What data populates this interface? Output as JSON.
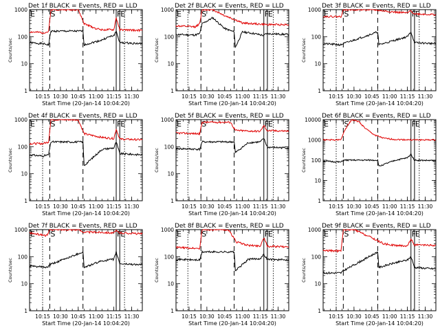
{
  "page": {
    "background": "#ffffff"
  },
  "chart_data": [
    {
      "type": "line",
      "title": "Det 1f BLACK = Events, RED = LLD",
      "xlabel": "Start Time (20-Jan-14 10:04:20)",
      "ylabel": "Counts/sec",
      "yscale": "log",
      "ylim": [
        1,
        1000
      ],
      "xlim": [
        "10:04",
        "11:39"
      ],
      "x_ticks": [
        "10:15",
        "10:30",
        "10:45",
        "11:00",
        "11:15",
        "11:30"
      ],
      "y_ticks": [
        "1",
        "10",
        "100",
        "1000"
      ],
      "markers": [
        {
          "label": "E",
          "time": "10:04"
        },
        {
          "label": "S",
          "time": "10:21"
        },
        {
          "label": "F",
          "time": "11:17"
        },
        {
          "label": "E",
          "time": "11:20"
        }
      ],
      "dashed_lines": [
        "10:21",
        "10:49"
      ],
      "solid_lines": [
        "11:17",
        "11:20"
      ],
      "dotted_lines": [
        "10:15",
        "11:24"
      ],
      "series": [
        {
          "color": "#000000",
          "x": [
            "10:04",
            "10:15",
            "10:20",
            "10:22",
            "10:49",
            "10:50",
            "11:05",
            "11:10",
            "11:15",
            "11:17",
            "11:20",
            "11:39"
          ],
          "values": [
            60,
            55,
            50,
            160,
            160,
            50,
            75,
            95,
            110,
            160,
            60,
            55
          ]
        },
        {
          "color": "#e00000",
          "x": [
            "10:04",
            "10:15",
            "10:20",
            "10:22",
            "10:30",
            "10:45",
            "10:50",
            "11:00",
            "11:05",
            "11:15",
            "11:17",
            "11:20",
            "11:39"
          ],
          "values": [
            150,
            140,
            150,
            1000,
            1000,
            1000,
            300,
            200,
            180,
            180,
            500,
            180,
            170
          ]
        }
      ]
    },
    {
      "type": "line",
      "title": "Det 2f BLACK = Events, RED = LLD",
      "xlabel": "Start Time (20-Jan-14 10:04:20)",
      "ylabel": "Counts/sec",
      "yscale": "log",
      "ylim": [
        1,
        1000
      ],
      "xlim": [
        "10:04",
        "11:39"
      ],
      "x_ticks": [
        "10:15",
        "10:30",
        "10:45",
        "11:00",
        "11:15",
        "11:30"
      ],
      "y_ticks": [
        "1",
        "10",
        "100",
        "1000"
      ],
      "markers": [
        {
          "label": "E",
          "time": "10:04"
        },
        {
          "label": "S",
          "time": "10:25"
        },
        {
          "label": "F",
          "time": "11:18"
        },
        {
          "label": "E",
          "time": "11:21"
        }
      ],
      "dashed_lines": [
        "10:25",
        "10:53"
      ],
      "solid_lines": [
        "11:18",
        "11:21"
      ],
      "dotted_lines": [
        "10:14",
        "11:26"
      ],
      "series": [
        {
          "color": "#000000",
          "x": [
            "10:04",
            "10:20",
            "10:24",
            "10:26",
            "10:35",
            "10:45",
            "10:53",
            "10:54",
            "11:00",
            "11:10",
            "11:18",
            "11:20",
            "11:39"
          ],
          "values": [
            120,
            115,
            130,
            300,
            500,
            200,
            150,
            40,
            150,
            130,
            110,
            130,
            120
          ]
        },
        {
          "color": "#e00000",
          "x": [
            "10:04",
            "10:20",
            "10:24",
            "10:26",
            "10:30",
            "10:35",
            "10:45",
            "10:55",
            "11:00",
            "11:10",
            "11:20",
            "11:39"
          ],
          "values": [
            250,
            230,
            300,
            1000,
            1000,
            1000,
            600,
            400,
            320,
            300,
            280,
            280
          ]
        }
      ]
    },
    {
      "type": "line",
      "title": "Det 3f BLACK = Events, RED = LLD",
      "xlabel": "Start Time (20-Jan-14 10:04:20)",
      "ylabel": "Counts/sec",
      "yscale": "log",
      "ylim": [
        1,
        1000
      ],
      "xlim": [
        "10:04",
        "11:39"
      ],
      "x_ticks": [
        "10:15",
        "10:30",
        "10:45",
        "11:00",
        "11:15",
        "11:30"
      ],
      "y_ticks": [
        "1",
        "10",
        "100",
        "1000"
      ],
      "markers": [
        {
          "label": "E",
          "time": "10:04"
        },
        {
          "label": "S",
          "time": "10:21"
        },
        {
          "label": "F",
          "time": "11:18"
        },
        {
          "label": "E",
          "time": "11:21"
        }
      ],
      "dashed_lines": [
        "10:21",
        "10:50"
      ],
      "solid_lines": [
        "11:18",
        "11:21"
      ],
      "dotted_lines": [
        "10:15",
        "11:25"
      ],
      "series": [
        {
          "color": "#000000",
          "x": [
            "10:04",
            "10:19",
            "10:21",
            "10:50",
            "10:51",
            "11:05",
            "11:15",
            "11:18",
            "11:21",
            "11:39"
          ],
          "values": [
            55,
            50,
            55,
            150,
            50,
            75,
            100,
            150,
            60,
            55
          ]
        },
        {
          "color": "#e00000",
          "x": [
            "10:04",
            "10:19",
            "10:21",
            "10:45",
            "10:50",
            "11:05",
            "11:15",
            "11:18",
            "11:21",
            "11:39"
          ],
          "values": [
            560,
            550,
            1000,
            1000,
            950,
            800,
            750,
            900,
            700,
            650
          ]
        }
      ]
    },
    {
      "type": "line",
      "title": "Det 4f BLACK = Events, RED = LLD",
      "xlabel": "Start Time (20-Jan-14 10:04:20)",
      "ylabel": "Counts/sec",
      "yscale": "log",
      "ylim": [
        1,
        1000
      ],
      "xlim": [
        "10:04",
        "11:39"
      ],
      "x_ticks": [
        "10:15",
        "10:30",
        "10:45",
        "11:00",
        "11:15",
        "11:30"
      ],
      "y_ticks": [
        "1",
        "10",
        "100",
        "1000"
      ],
      "markers": [
        {
          "label": "E",
          "time": "10:04"
        },
        {
          "label": "S",
          "time": "10:21"
        },
        {
          "label": "F",
          "time": "11:17"
        },
        {
          "label": "E",
          "time": "11:20"
        }
      ],
      "dashed_lines": [
        "10:21",
        "10:49"
      ],
      "solid_lines": [
        "11:17",
        "11:20"
      ],
      "dotted_lines": [
        "10:15",
        "11:24"
      ],
      "series": [
        {
          "color": "#000000",
          "x": [
            "10:04",
            "10:15",
            "10:20",
            "10:22",
            "10:49",
            "10:50",
            "11:05",
            "11:15",
            "11:17",
            "11:20",
            "11:39"
          ],
          "values": [
            50,
            45,
            50,
            150,
            150,
            20,
            80,
            90,
            150,
            55,
            50
          ]
        },
        {
          "color": "#e00000",
          "x": [
            "10:04",
            "10:15",
            "10:20",
            "10:22",
            "10:45",
            "10:50",
            "11:05",
            "11:15",
            "11:17",
            "11:20",
            "11:39"
          ],
          "values": [
            130,
            130,
            150,
            1000,
            1000,
            300,
            220,
            200,
            450,
            190,
            180
          ]
        }
      ]
    },
    {
      "type": "line",
      "title": "Det 5f BLACK = Events, RED = LLD",
      "xlabel": "Start Time (20-Jan-14 10:04:20)",
      "ylabel": "Counts/sec",
      "yscale": "log",
      "ylim": [
        1,
        1000
      ],
      "xlim": [
        "10:04",
        "11:39"
      ],
      "x_ticks": [
        "10:15",
        "10:30",
        "10:45",
        "11:00",
        "11:15",
        "11:30"
      ],
      "y_ticks": [
        "1",
        "10",
        "100",
        "1000"
      ],
      "markers": [
        {
          "label": "E",
          "time": "10:04"
        },
        {
          "label": "S",
          "time": "10:25"
        },
        {
          "label": "F",
          "time": "11:18"
        },
        {
          "label": "E",
          "time": "11:21"
        }
      ],
      "dashed_lines": [
        "10:25",
        "10:53"
      ],
      "solid_lines": [
        "11:18",
        "11:21"
      ],
      "dotted_lines": [
        "10:14",
        "11:26"
      ],
      "series": [
        {
          "color": "#000000",
          "x": [
            "10:04",
            "10:24",
            "10:26",
            "10:53",
            "10:54",
            "11:05",
            "11:15",
            "11:18",
            "11:21",
            "11:39"
          ],
          "values": [
            85,
            80,
            150,
            150,
            60,
            140,
            150,
            200,
            95,
            90
          ]
        },
        {
          "color": "#e00000",
          "x": [
            "10:04",
            "10:24",
            "10:26",
            "10:50",
            "10:54",
            "11:05",
            "11:15",
            "11:18",
            "11:21",
            "11:39"
          ],
          "values": [
            320,
            300,
            800,
            800,
            400,
            380,
            370,
            600,
            390,
            380
          ]
        }
      ]
    },
    {
      "type": "line",
      "title": "Det 6f BLACK = Events, RED = LLD",
      "xlabel": "Start Time (20-Jan-14 10:04:20)",
      "ylabel": "Counts/sec",
      "yscale": "log",
      "ylim": [
        1,
        10000
      ],
      "xlim": [
        "10:04",
        "11:39"
      ],
      "x_ticks": [
        "10:15",
        "10:30",
        "10:45",
        "11:00",
        "11:15",
        "11:30"
      ],
      "y_ticks": [
        "1",
        "10",
        "100",
        "1000",
        "10000"
      ],
      "markers": [
        {
          "label": "E",
          "time": "10:04"
        },
        {
          "label": "S",
          "time": "10:21"
        },
        {
          "label": "F",
          "time": "11:18"
        },
        {
          "label": "E",
          "time": "11:21"
        }
      ],
      "dashed_lines": [
        "10:21",
        "10:50"
      ],
      "solid_lines": [
        "11:18",
        "11:21"
      ],
      "dotted_lines": [
        "10:15",
        "11:25"
      ],
      "series": [
        {
          "color": "#000000",
          "x": [
            "10:04",
            "10:19",
            "10:21",
            "10:50",
            "10:51",
            "11:05",
            "11:15",
            "11:18",
            "11:21",
            "11:39"
          ],
          "values": [
            90,
            80,
            100,
            100,
            50,
            100,
            130,
            200,
            100,
            95
          ]
        },
        {
          "color": "#e00000",
          "x": [
            "10:04",
            "10:19",
            "10:22",
            "10:28",
            "10:34",
            "10:40",
            "10:47",
            "10:55",
            "11:05",
            "11:20",
            "11:39"
          ],
          "values": [
            1000,
            1000,
            3000,
            10000,
            8000,
            3500,
            1800,
            1200,
            1050,
            1000,
            1000
          ]
        }
      ]
    },
    {
      "type": "line",
      "title": "Det 7f BLACK = Events, RED = LLD",
      "xlabel": "Start Time (20-Jan-14 10:04:20)",
      "ylabel": "Counts/sec",
      "yscale": "log",
      "ylim": [
        1,
        1000
      ],
      "xlim": [
        "10:04",
        "11:39"
      ],
      "x_ticks": [
        "10:15",
        "10:30",
        "10:45",
        "11:00",
        "11:15",
        "11:30"
      ],
      "y_ticks": [
        "1",
        "10",
        "100",
        "1000"
      ],
      "markers": [
        {
          "label": "E",
          "time": "10:04"
        },
        {
          "label": "S",
          "time": "10:21"
        },
        {
          "label": "F",
          "time": "11:17"
        },
        {
          "label": "E",
          "time": "11:20"
        }
      ],
      "dashed_lines": [
        "10:21",
        "10:49"
      ],
      "solid_lines": [
        "11:17",
        "11:20"
      ],
      "dotted_lines": [
        "10:15",
        "11:24"
      ],
      "series": [
        {
          "color": "#000000",
          "x": [
            "10:04",
            "10:19",
            "10:21",
            "10:49",
            "10:50",
            "11:05",
            "11:15",
            "11:17",
            "11:20",
            "11:39"
          ],
          "values": [
            45,
            40,
            50,
            150,
            40,
            70,
            80,
            150,
            55,
            50
          ]
        },
        {
          "color": "#e00000",
          "x": [
            "10:04",
            "10:19",
            "10:21",
            "10:45",
            "10:50",
            "11:05",
            "11:15",
            "11:17",
            "11:20",
            "11:39"
          ],
          "values": [
            750,
            600,
            1000,
            1000,
            800,
            800,
            750,
            900,
            760,
            700
          ]
        }
      ]
    },
    {
      "type": "line",
      "title": "Det 8f BLACK = Events, RED = LLD",
      "xlabel": "Start Time (20-Jan-14 10:04:20)",
      "ylabel": "Counts/sec",
      "yscale": "log",
      "ylim": [
        1,
        1000
      ],
      "xlim": [
        "10:04",
        "11:39"
      ],
      "x_ticks": [
        "10:15",
        "10:30",
        "10:45",
        "11:00",
        "11:15",
        "11:30"
      ],
      "y_ticks": [
        "1",
        "10",
        "100",
        "1000"
      ],
      "markers": [
        {
          "label": "E",
          "time": "10:04"
        },
        {
          "label": "S",
          "time": "10:25"
        },
        {
          "label": "F",
          "time": "11:18"
        },
        {
          "label": "E",
          "time": "11:21"
        }
      ],
      "dashed_lines": [
        "10:25",
        "10:53"
      ],
      "solid_lines": [
        "11:18",
        "11:21"
      ],
      "dotted_lines": [
        "10:14",
        "11:26"
      ],
      "series": [
        {
          "color": "#000000",
          "x": [
            "10:04",
            "10:24",
            "10:26",
            "10:53",
            "10:54",
            "11:05",
            "11:15",
            "11:18",
            "11:21",
            "11:39"
          ],
          "values": [
            80,
            75,
            150,
            150,
            30,
            80,
            85,
            120,
            80,
            75
          ]
        },
        {
          "color": "#e00000",
          "x": [
            "10:04",
            "10:24",
            "10:26",
            "10:48",
            "10:55",
            "11:05",
            "11:15",
            "11:18",
            "11:21",
            "11:39"
          ],
          "values": [
            220,
            200,
            1000,
            1000,
            350,
            260,
            250,
            500,
            240,
            230
          ]
        }
      ]
    },
    {
      "type": "line",
      "title": "Det 9f BLACK = Events, RED = LLD",
      "xlabel": "Start Time (20-Jan-14 10:04:20)",
      "ylabel": "Counts/sec",
      "yscale": "log",
      "ylim": [
        1,
        1000
      ],
      "xlim": [
        "10:04",
        "11:39"
      ],
      "x_ticks": [
        "10:15",
        "10:30",
        "10:45",
        "11:00",
        "11:15",
        "11:30"
      ],
      "y_ticks": [
        "1",
        "10",
        "100",
        "1000"
      ],
      "markers": [
        {
          "label": "E",
          "time": "10:04"
        },
        {
          "label": "S",
          "time": "10:21"
        },
        {
          "label": "F",
          "time": "11:18"
        },
        {
          "label": "E",
          "time": "11:21"
        }
      ],
      "dashed_lines": [
        "10:21",
        "10:50"
      ],
      "solid_lines": [
        "11:18",
        "11:21"
      ],
      "dotted_lines": [
        "10:15",
        "11:25"
      ],
      "series": [
        {
          "color": "#000000",
          "x": [
            "10:04",
            "10:19",
            "10:21",
            "10:50",
            "10:51",
            "11:05",
            "11:15",
            "11:18",
            "11:21",
            "11:39"
          ],
          "values": [
            25,
            25,
            30,
            150,
            40,
            60,
            75,
            100,
            40,
            35
          ]
        },
        {
          "color": "#e00000",
          "x": [
            "10:04",
            "10:19",
            "10:21",
            "10:30",
            "10:45",
            "10:55",
            "11:05",
            "11:15",
            "11:18",
            "11:21",
            "11:39"
          ],
          "values": [
            170,
            160,
            1000,
            1000,
            500,
            300,
            260,
            250,
            450,
            270,
            260
          ]
        }
      ]
    }
  ]
}
